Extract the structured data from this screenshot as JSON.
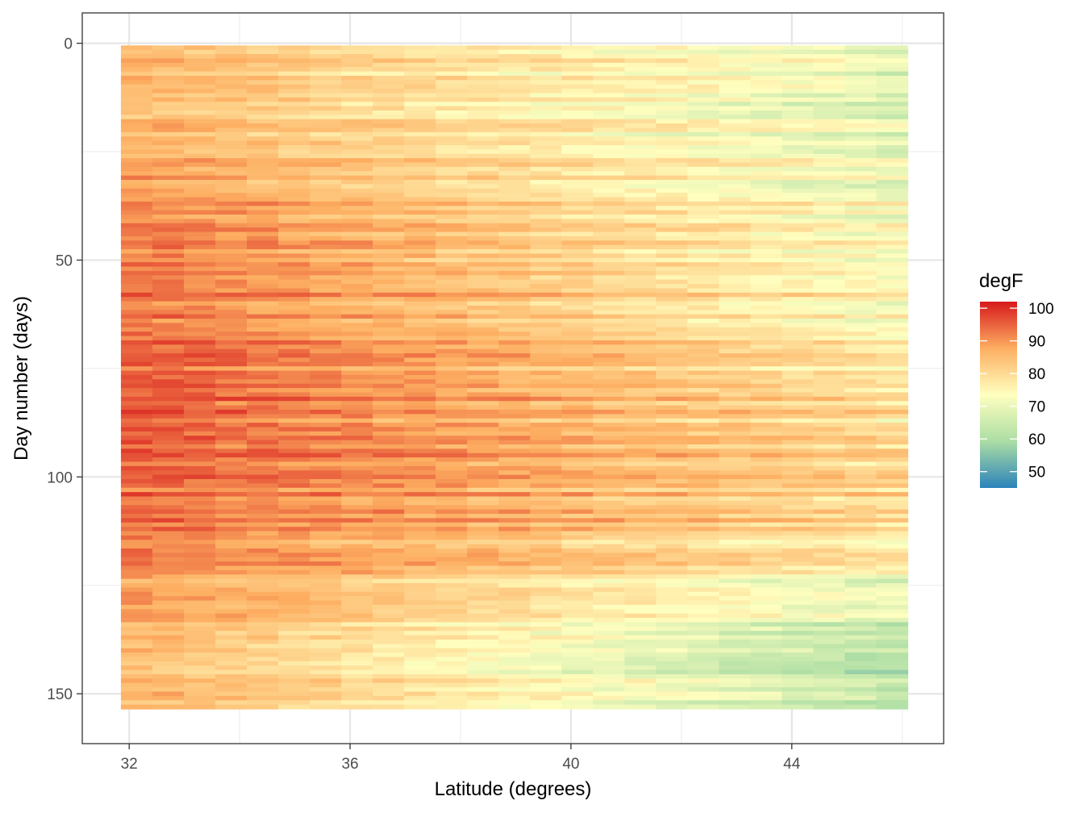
{
  "chart_data": {
    "type": "heatmap",
    "xlabel": "Latitude (degrees)",
    "ylabel": "Day number (days)",
    "x_ticks": [
      32,
      36,
      40,
      44
    ],
    "y_ticks": [
      0,
      50,
      100,
      150
    ],
    "xlim": [
      31.15,
      46.75
    ],
    "ylim": [
      -7,
      161.5
    ],
    "y_reversed": true,
    "grid": true,
    "x_range": [
      31.85,
      46.1
    ],
    "y_range": [
      0.5,
      153.5
    ],
    "x_bins": 25,
    "y_bins": 153,
    "legend": {
      "title": "degF",
      "position": "right",
      "labels": [
        50,
        60,
        70,
        80,
        90,
        100
      ],
      "min": 45,
      "max": 102,
      "palette": [
        "#2B83BA",
        "#ABDDA4",
        "#FFFFBF",
        "#FDAE61",
        "#D7191C"
      ],
      "palette_name": "Spectral"
    },
    "approximate_pattern": {
      "description_bands": [
        {
          "days": [
            0,
            30
          ],
          "south_degF": 85,
          "north_degF": 68
        },
        {
          "days": [
            30,
            60
          ],
          "south_degF": 93,
          "north_degF": 72
        },
        {
          "days": [
            60,
            95
          ],
          "south_degF": 96,
          "north_degF": 78
        },
        {
          "days": [
            95,
            125
          ],
          "south_degF": 94,
          "north_degF": 80
        },
        {
          "days": [
            125,
            153
          ],
          "south_degF": 86,
          "north_degF": 62
        }
      ]
    }
  }
}
